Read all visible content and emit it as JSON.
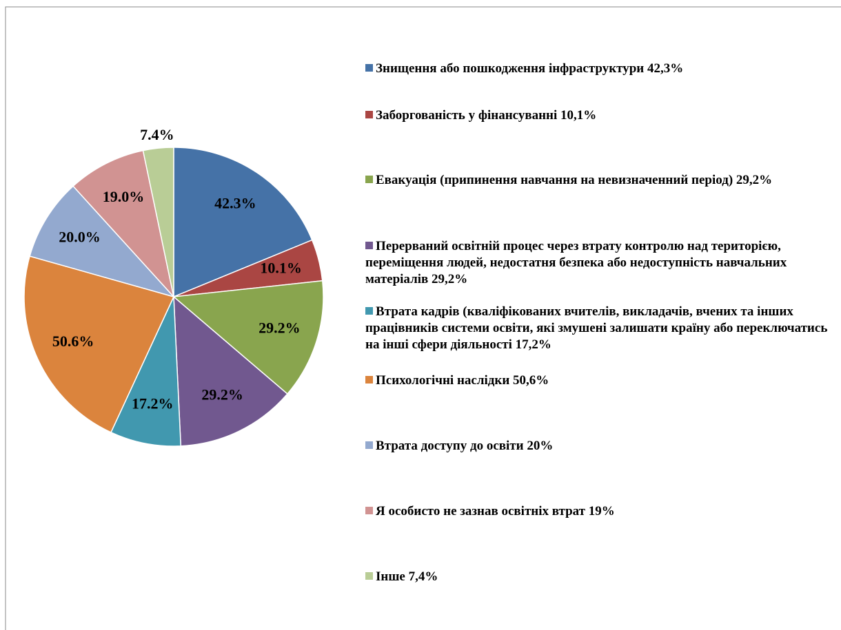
{
  "chart_data": {
    "type": "pie",
    "categories": [
      "Знищення або пошкодження інфраструктури 42,3%",
      "Заборгованість у фінансуванні 10,1%",
      "Евакуація (припинення навчання на невизначенний період) 29,2%",
      "Перерваний освітній процес через втрату контролю над територією, переміщення людей, недостатня безпека або недоступність навчальних матеріалів 29,2%",
      "Втрата кадрів (кваліфікованих вчителів, викладачів, вчених та інших працівників системи освіти, які змушені залишати країну або переключатись на інші сфери діяльності 17,2%",
      "Психологічні наслідки 50,6%",
      "Втрата доступу до освіти 20%",
      "Я особисто не зазнав освітніх втрат 19%",
      "Інше 7,4%"
    ],
    "values": [
      42.3,
      10.1,
      29.2,
      29.2,
      17.2,
      50.6,
      20.0,
      19.0,
      7.4
    ],
    "value_labels": [
      "42.3%",
      "10.1%",
      "29.2%",
      "29.2%",
      "17.2%",
      "50.6%",
      "20.0%",
      "19.0%",
      "7.4%"
    ],
    "colors": [
      "#4572a7",
      "#aa4643",
      "#89a54e",
      "#71588f",
      "#4198af",
      "#db843d",
      "#93a9cf",
      "#d19392",
      "#b9cd96"
    ],
    "legend": "right"
  }
}
